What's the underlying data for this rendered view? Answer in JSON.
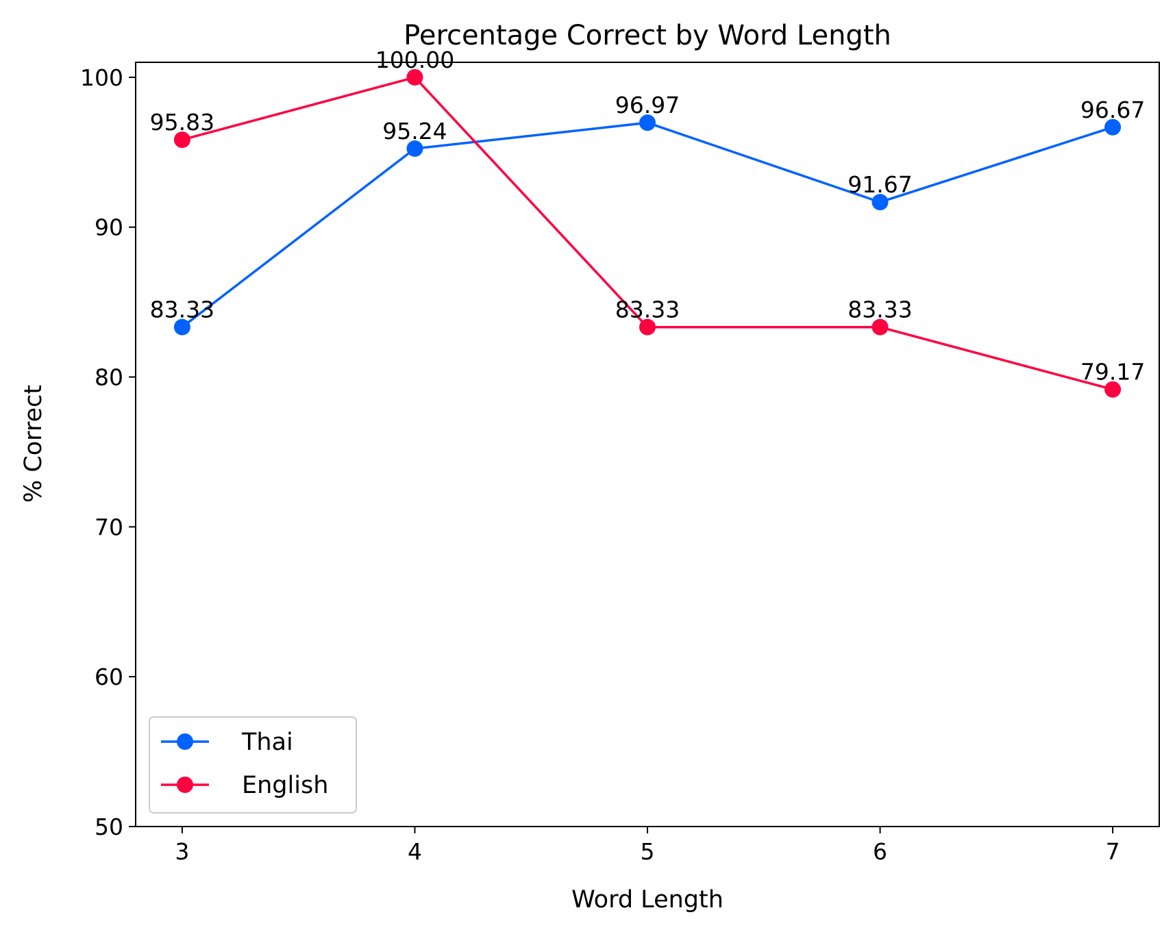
{
  "chart_data": {
    "type": "line",
    "title": "Percentage Correct by Word Length",
    "xlabel": "Word Length",
    "ylabel": "% Correct",
    "x": [
      3,
      4,
      5,
      6,
      7
    ],
    "xlim": [
      2.8,
      7.2
    ],
    "ylim": [
      50,
      101
    ],
    "xticks": [
      "3",
      "4",
      "5",
      "6",
      "7"
    ],
    "yticks": [
      "50",
      "60",
      "70",
      "80",
      "90",
      "100"
    ],
    "grid": false,
    "legend_position": "lower-left",
    "series": [
      {
        "name": "Thai",
        "color": "#0062ff",
        "marker": "circle",
        "values": [
          83.33,
          95.24,
          96.97,
          91.67,
          96.67
        ],
        "labels": [
          "83.33",
          "95.24",
          "96.97",
          "91.67",
          "96.67"
        ]
      },
      {
        "name": "English",
        "color": "#ff0040",
        "marker": "circle",
        "values": [
          95.83,
          100.0,
          83.33,
          83.33,
          79.17
        ],
        "labels": [
          "95.83",
          "100.00",
          "83.33",
          "83.33",
          "79.17"
        ]
      }
    ]
  }
}
